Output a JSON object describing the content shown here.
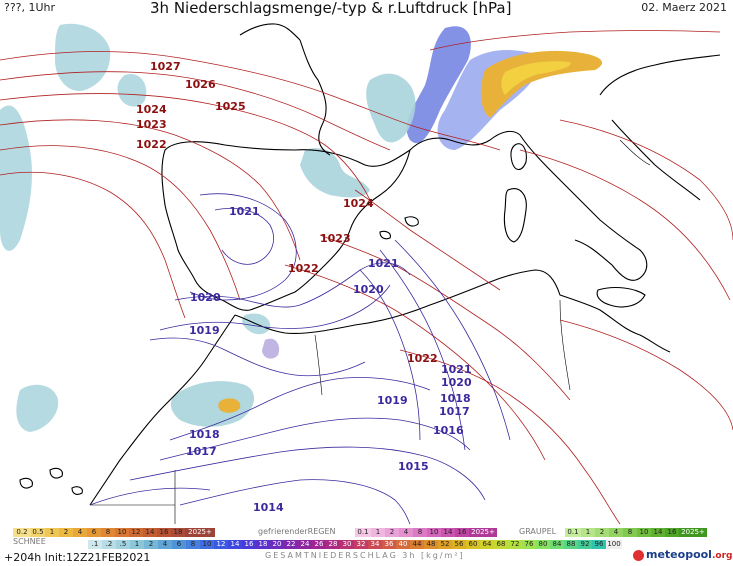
{
  "header": {
    "left_label": "???, 1Uhr",
    "title": "3h Niederschlagsmenge/-typ & r.Luftdruck [hPa]",
    "date": "02. Maerz 2021"
  },
  "isobars": {
    "red": [
      "1027",
      "1026",
      "1025",
      "1024",
      "1023",
      "1022",
      "1024",
      "1023",
      "1022",
      "1022"
    ],
    "blue": [
      "1021",
      "1021",
      "1020",
      "1020",
      "1019",
      "1021",
      "1020",
      "1019",
      "1018",
      "1017",
      "1016",
      "1015",
      "1018",
      "1017",
      "1014"
    ]
  },
  "legend": {
    "snow_label": "SCHNEE",
    "rain_freezing_label": "gefrierenderREGEN",
    "graupel_label": "GRAUPEL",
    "total_label": "GESAMTNIEDERSCHLAG 3h [kg/m²]",
    "snow_values": [
      "0.2",
      "0.5",
      "1",
      "2",
      "4",
      "6",
      "8",
      "10",
      "12",
      "14",
      "16",
      "18",
      "2025+"
    ],
    "rain_freezing_values": [
      "0.1",
      "1",
      "2",
      "4",
      "8",
      "10",
      "14",
      "16",
      "2025+"
    ],
    "graupel_values": [
      "0.1",
      "1",
      "2",
      "4",
      "8",
      "10",
      "14",
      "16",
      "2025+"
    ],
    "total_values": [
      ".1",
      ".2",
      ".5",
      "1",
      "2",
      "4",
      "6",
      "8",
      "10",
      "12",
      "14",
      "16",
      "18",
      "20",
      "22",
      "24",
      "26",
      "28",
      "30",
      "32",
      "34",
      "36",
      "40",
      "44",
      "48",
      "52",
      "56",
      "60",
      "64",
      "68",
      "72",
      "76",
      "80",
      "84",
      "88",
      "92",
      "96",
      "100"
    ]
  },
  "footer": {
    "run_info": "+204h  Init:12Z21FEB2021",
    "logo_name": "meteopool",
    "logo_tld": ".org"
  },
  "colors": {
    "isobar_high": "#8b1010",
    "isobar_low": "#3b2a9e",
    "snow": "#e8b23a",
    "rain_light": "#a8d4dc",
    "rain_heavy": "#5566dd",
    "coast": "#000000"
  }
}
